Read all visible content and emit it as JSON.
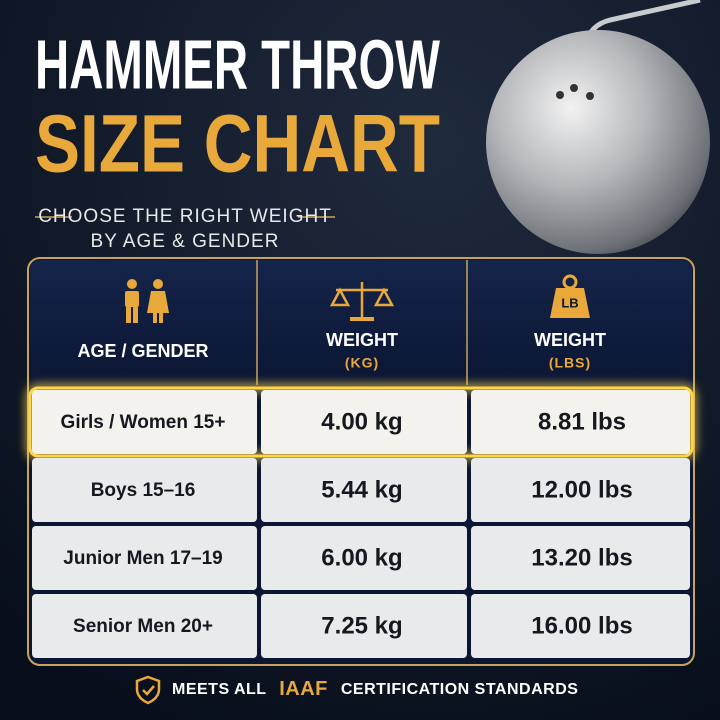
{
  "header": {
    "title_line1": "HAMMER THROW",
    "title_line2": "SIZE CHART",
    "subtitle_line1": "CHOOSE THE RIGHT WEIGHT",
    "subtitle_line2": "BY AGE & GENDER"
  },
  "table": {
    "columns": [
      {
        "label": "AGE / GENDER"
      },
      {
        "label": "WEIGHT",
        "unit": "(KG)"
      },
      {
        "label": "WEIGHT",
        "unit": "(LBS)",
        "icon_text": "LB"
      }
    ],
    "rows": [
      [
        "Girls / Women 15+",
        "4.00 kg",
        "8.81 lbs"
      ],
      [
        "Boys 15–16",
        "5.44 kg",
        "12.00 lbs"
      ],
      [
        "Junior Men 17–19",
        "6.00 kg",
        "13.20 lbs"
      ],
      [
        "Senior Men 20+",
        "7.25 kg",
        "16.00 lbs"
      ]
    ]
  },
  "footer": {
    "prefix": "MEETS ALL",
    "highlight": "IAAF",
    "suffix": "CERTIFICATION STANDARDS"
  }
}
